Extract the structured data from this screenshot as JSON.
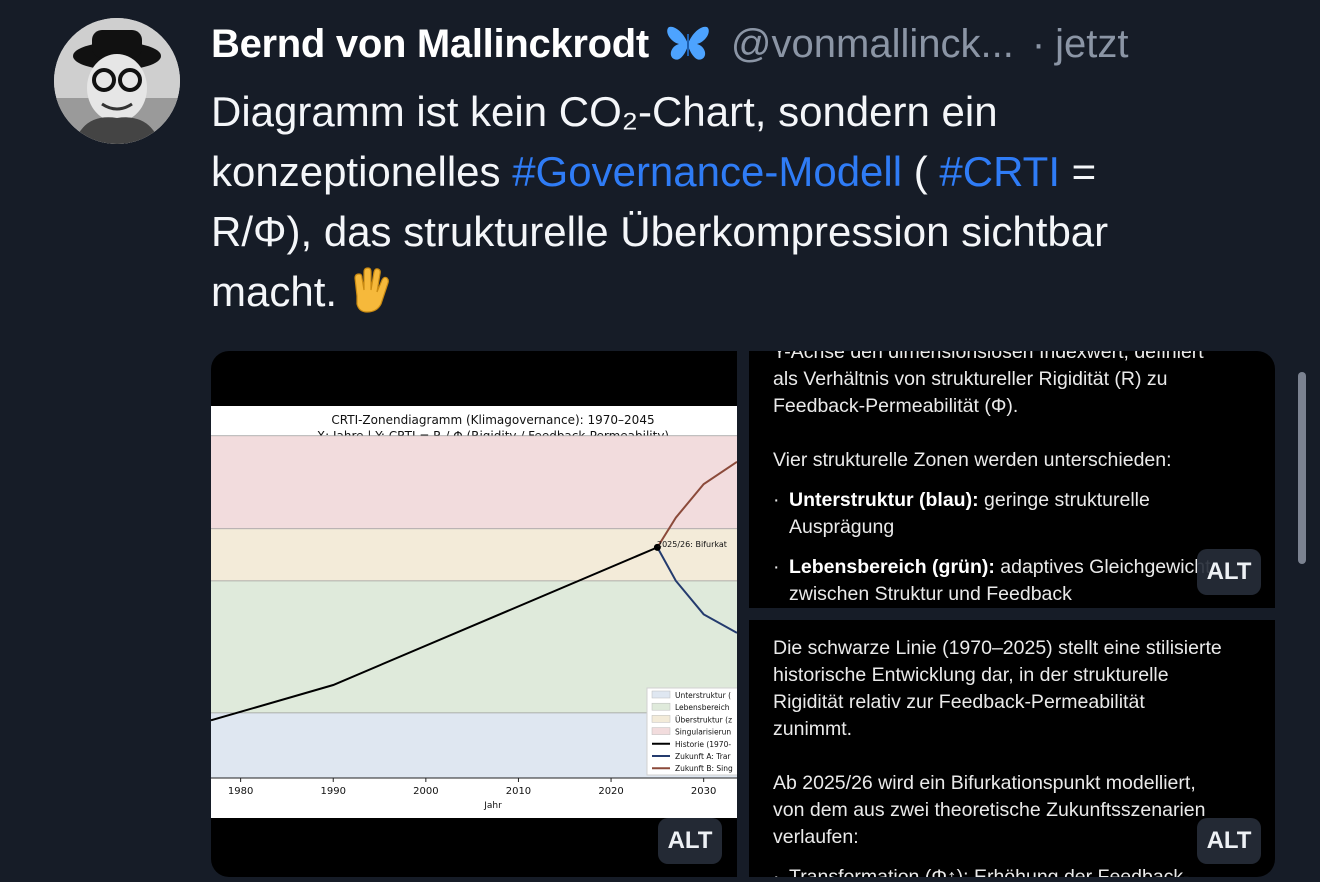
{
  "author": {
    "name": "Bernd von Mallinckrodt",
    "handle": "@vonmallinck...",
    "separator": "·",
    "time": "jetzt"
  },
  "post": {
    "line1": "Diagramm ist kein CO₂-Chart, sondern ein",
    "line2_pre": "konzeptionelles ",
    "tag1": "#Governance-Modell",
    "line2_mid": " ( ",
    "tag2": "#CRTI",
    "line2_post": " =",
    "line3": "R/Φ), das strukturelle Überkompression sichtbar",
    "line4": "macht."
  },
  "alt_label": "ALT",
  "colors": {
    "background": "#161c27",
    "hashtag": "#2f7cf6",
    "muted": "#8b95a5"
  },
  "icons": {
    "butterfly": "butterfly-icon",
    "hand": "vulcan-salute-icon"
  },
  "chart": {
    "title": "CRTI-Zonendiagramm (Klimagovernance): 1970–2045",
    "subtitle": "X: Jahre | Y: CRTI = R / Φ (Rigidity / Feedback-Permeability)",
    "annotation": "2025/26: Bifurkat",
    "xlabel": "Jahr",
    "legend": [
      "Unterstruktur (",
      "Lebensbereich",
      "Überstruktur (z",
      "Singularisierun",
      "Historie (1970-",
      "Zukunft A: Trar",
      "Zukunft B: Sing"
    ]
  },
  "chart_data": {
    "type": "line",
    "x_ticks": [
      1980,
      1990,
      2000,
      2010,
      2020,
      2030
    ],
    "xlim": [
      1976.8,
      2033.6
    ],
    "ylim": [
      0,
      1
    ],
    "zones": [
      {
        "name": "Unterstruktur",
        "from": 0,
        "to": 0.175,
        "color": "#dfe7f1"
      },
      {
        "name": "Lebensbereich",
        "from": 0.175,
        "to": 0.53,
        "color": "#dfeadb"
      },
      {
        "name": "Überstruktur",
        "from": 0.53,
        "to": 0.67,
        "color": "#f3ebd9"
      },
      {
        "name": "Singularisierung",
        "from": 0.67,
        "to": 0.92,
        "color": "#f2dcdd"
      }
    ],
    "series": [
      {
        "name": "Historie (1970-",
        "color": "#000000",
        "x": [
          1976.8,
          1990,
          2025
        ],
        "y": [
          0.155,
          0.25,
          0.62
        ]
      },
      {
        "name": "Zukunft A: Trar",
        "color": "#243b6e",
        "x": [
          2025,
          2027,
          2030,
          2033.6
        ],
        "y": [
          0.62,
          0.53,
          0.44,
          0.39
        ]
      },
      {
        "name": "Zukunft B: Sing",
        "color": "#8b4a3a",
        "x": [
          2025,
          2027,
          2030,
          2033.6
        ],
        "y": [
          0.62,
          0.7,
          0.79,
          0.85
        ]
      }
    ]
  },
  "doc_top": {
    "l1": "Y-Achse den dimensionslosen Indexwert, definiert",
    "l2": "als Verhältnis von struktureller Rigidität (R) zu",
    "l3": "Feedback-Permeabilität (Φ).",
    "l4": "Vier strukturelle Zonen werden unterschieden:",
    "b1_bold": "Unterstruktur (blau):",
    "b1_rest": " geringe strukturelle",
    "b1_l2": "Ausprägung",
    "b2_bold": "Lebensbereich (grün):",
    "b2_rest": " adaptives Gleichgewicht",
    "b2_l2": "zwischen Struktur und Feedback"
  },
  "doc_bottom": {
    "l1": "Die schwarze Linie (1970–2025) stellt eine stilisierte",
    "l2": "historische Entwicklung dar, in der strukturelle",
    "l3": "Rigidität relativ zur Feedback-Permeabilität",
    "l4": "zunimmt.",
    "l5": "Ab 2025/26 wird ein Bifurkationspunkt modelliert,",
    "l6": "von dem aus zwei theoretische Zukunftsszenarien",
    "l7": "verlaufen:",
    "l8": "Transformation (Φ↑): Erhöhung der Feedback-"
  }
}
